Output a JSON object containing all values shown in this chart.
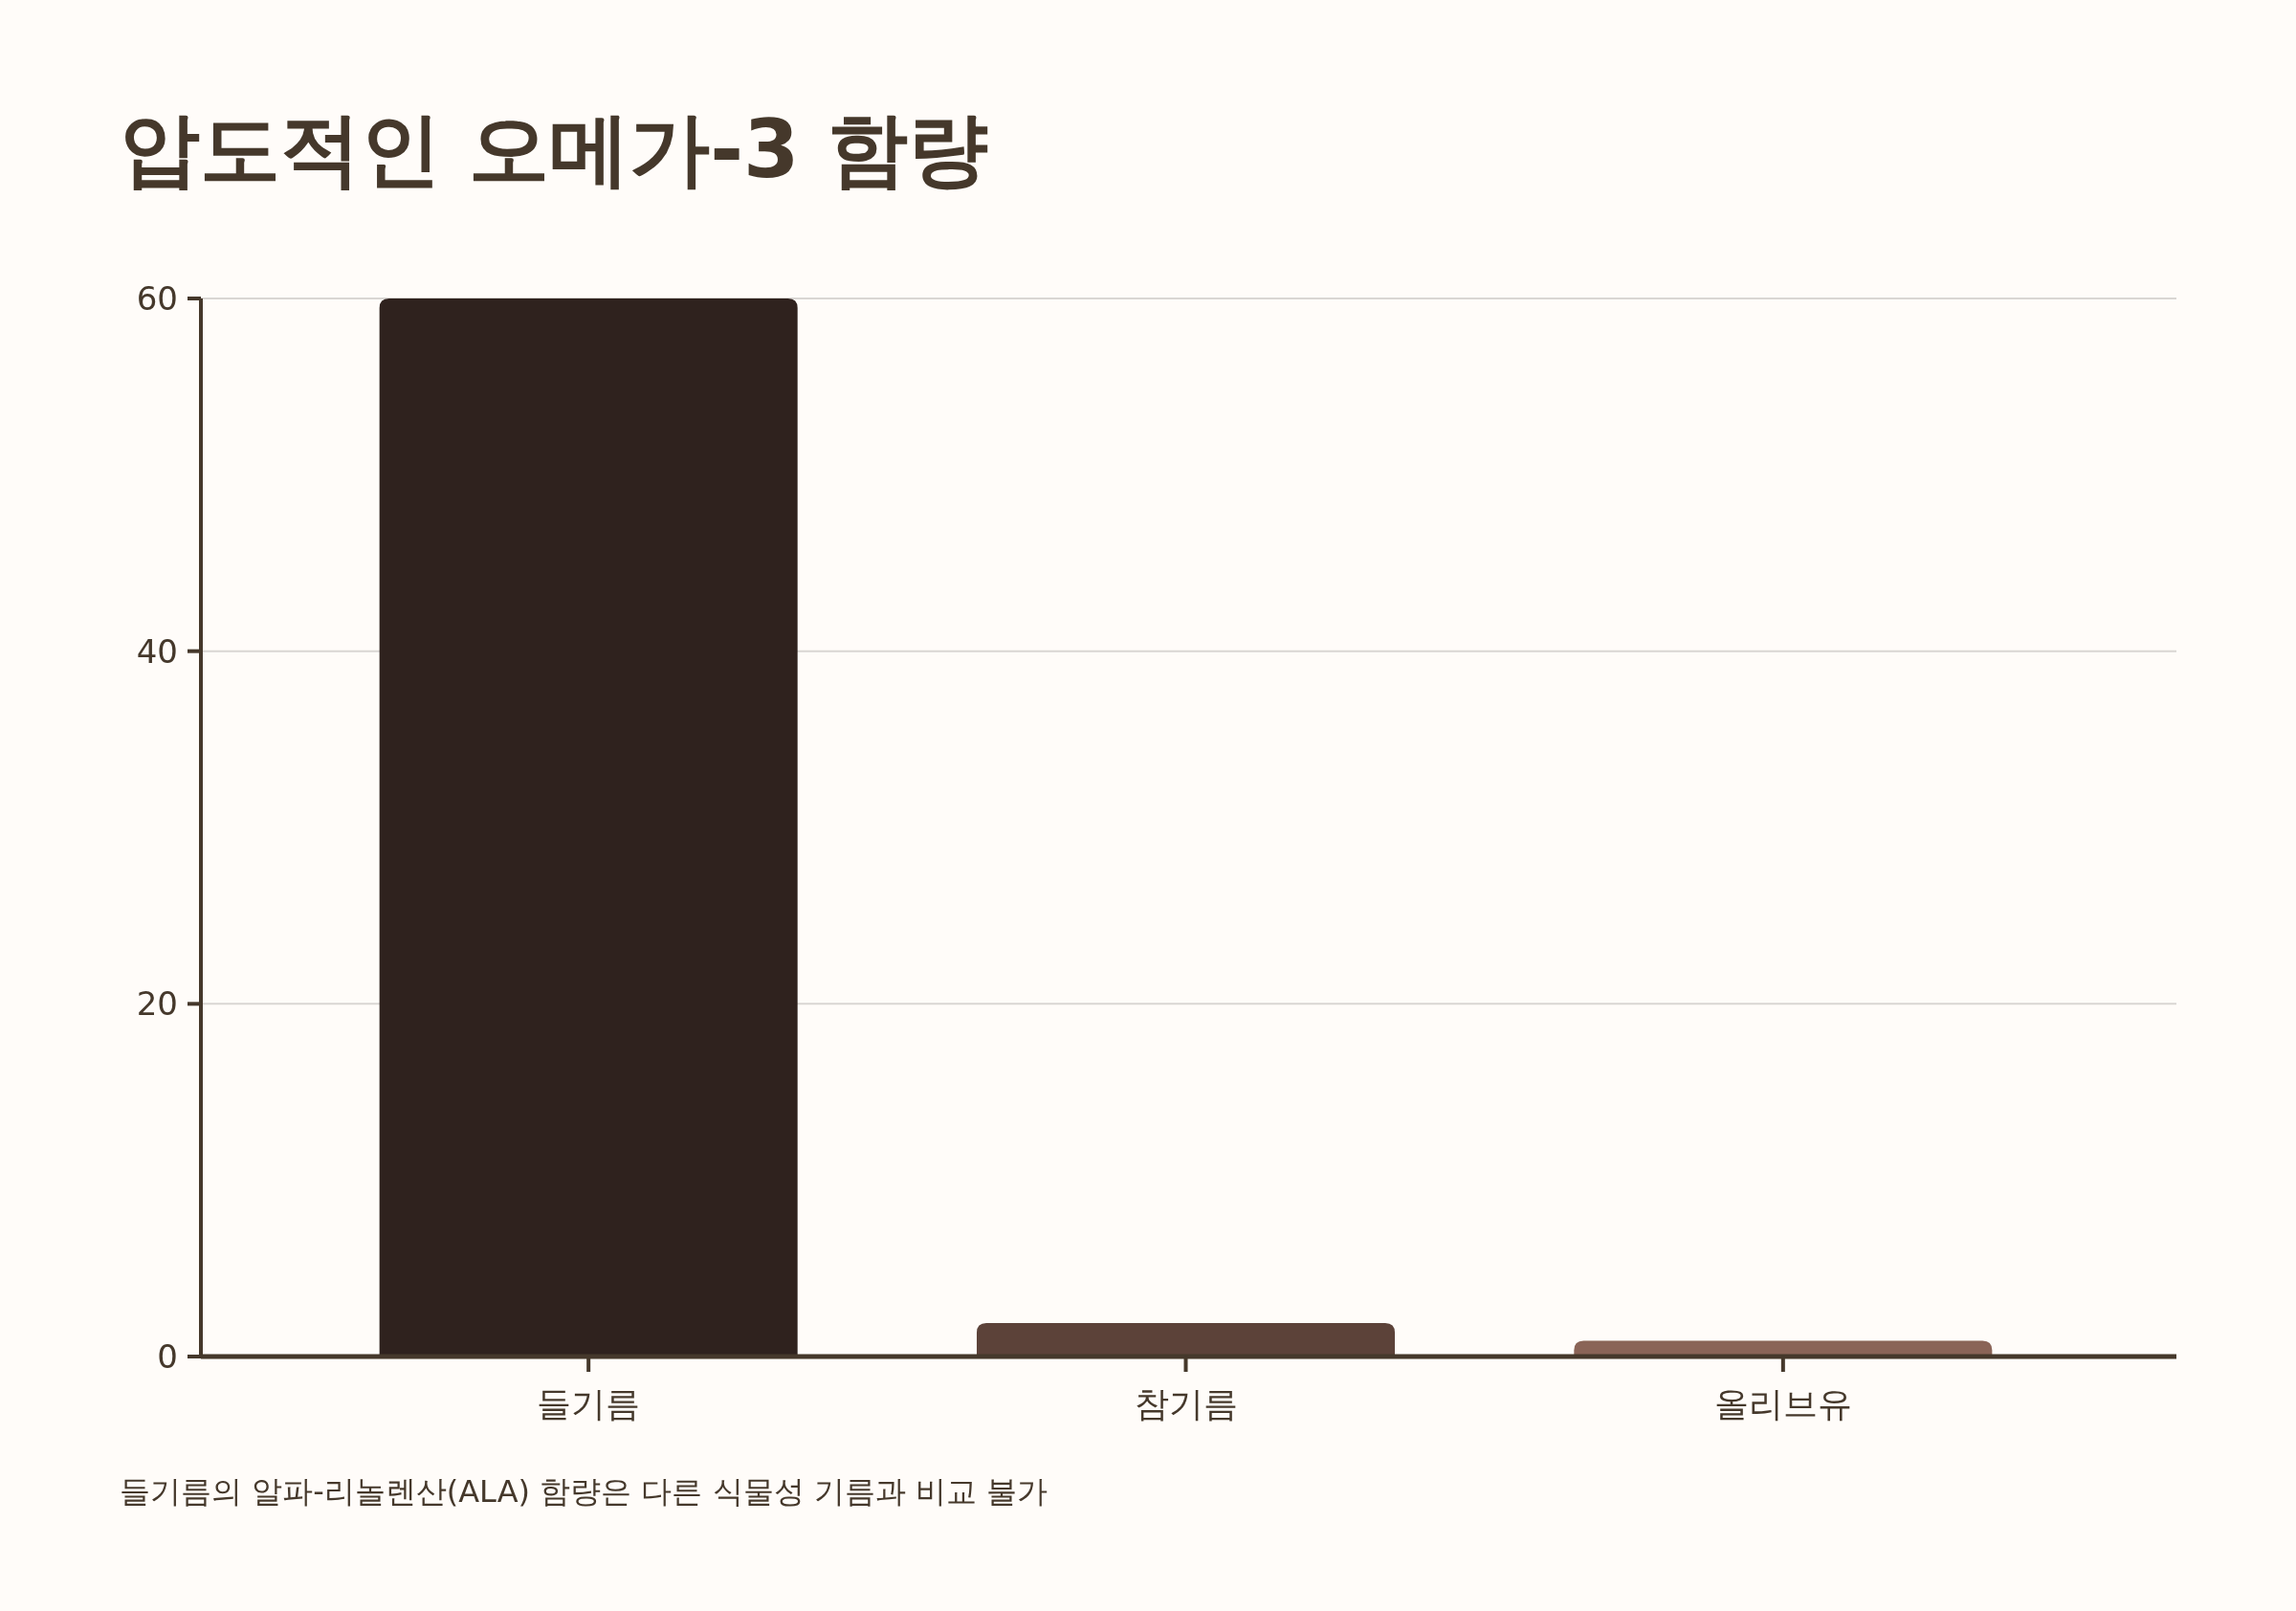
{
  "chart_data": {
    "type": "bar",
    "title": "압도적인 오메가-3 함량",
    "categories": [
      "들기름",
      "참기름",
      "올리브유"
    ],
    "values": [
      60,
      1.9,
      0.9
    ],
    "colors": [
      "#2f221e",
      "#5c4239",
      "#8a6457"
    ],
    "ylim": [
      0,
      60
    ],
    "yticks": [
      0,
      20,
      40,
      60
    ],
    "grid": "y",
    "annotations": [
      "들기름의 알파-리놀렌산(ALA) 함량은 다른 식물성 기름과 비교 불가"
    ]
  }
}
